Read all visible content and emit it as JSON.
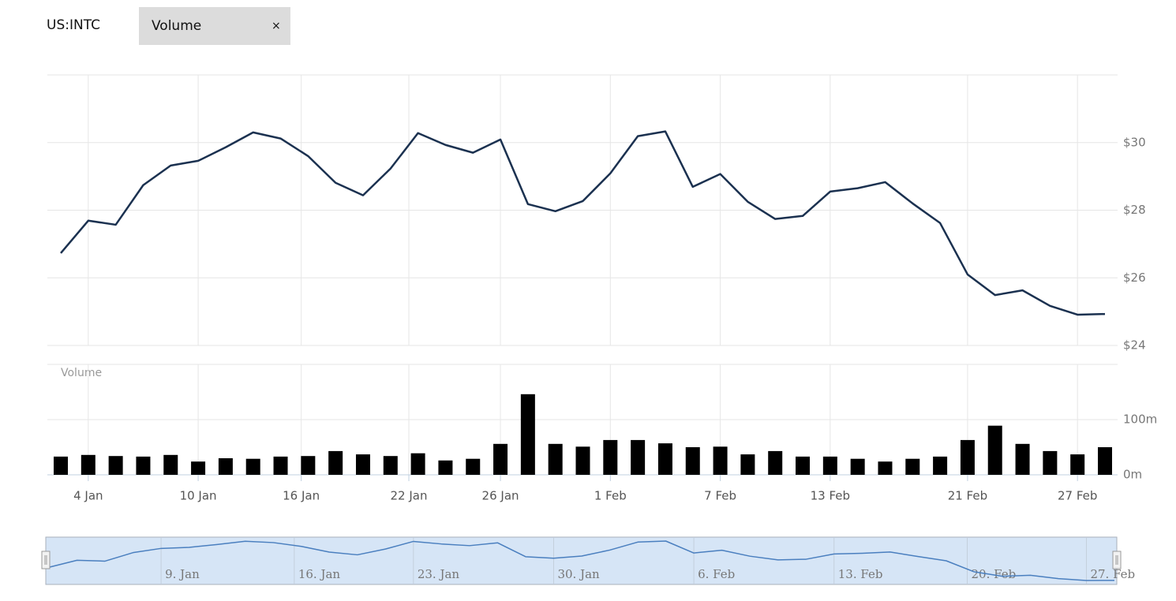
{
  "header": {
    "symbol": "US:INTC",
    "tab": "Volume",
    "close": "×"
  },
  "chart_data": [
    {
      "type": "line",
      "color": "#1b3150",
      "grid": true,
      "x": [
        3,
        4,
        5,
        6,
        9,
        10,
        11,
        12,
        13,
        17,
        18,
        19,
        20,
        23,
        24,
        25,
        26,
        27,
        30,
        31,
        32,
        33,
        34,
        37,
        38,
        39,
        40,
        41,
        44,
        45,
        46,
        47,
        48,
        52,
        53,
        54,
        55,
        58,
        59
      ],
      "values": [
        26.73,
        27.69,
        27.57,
        28.74,
        29.32,
        29.46,
        29.86,
        30.3,
        30.12,
        29.6,
        28.81,
        28.44,
        29.23,
        30.28,
        29.93,
        29.7,
        30.09,
        28.18,
        27.97,
        28.27,
        29.09,
        30.19,
        30.33,
        28.69,
        29.07,
        28.25,
        27.74,
        27.83,
        28.55,
        28.65,
        28.83,
        28.2,
        27.62,
        26.1,
        25.49,
        25.63,
        25.17,
        24.91,
        24.93
      ],
      "ylim": [
        24,
        32
      ],
      "yticks": [
        {
          "value": 24,
          "label": "$24"
        },
        {
          "value": 26,
          "label": "$26"
        },
        {
          "value": 28,
          "label": "$28"
        },
        {
          "value": 30,
          "label": "$30"
        }
      ],
      "xticks": [
        {
          "value": 4,
          "label": "4 Jan"
        },
        {
          "value": 10,
          "label": "10 Jan"
        },
        {
          "value": 16,
          "label": "16 Jan"
        },
        {
          "value": 22,
          "label": "22 Jan"
        },
        {
          "value": 26,
          "label": "26 Jan"
        },
        {
          "value": 32,
          "label": "1 Feb"
        },
        {
          "value": 38,
          "label": "7 Feb"
        },
        {
          "value": 44,
          "label": "13 Feb"
        },
        {
          "value": 52,
          "label": "21 Feb"
        },
        {
          "value": 58,
          "label": "27 Feb"
        }
      ]
    },
    {
      "type": "bar",
      "title": "Volume",
      "color": "#000000",
      "values": [
        33,
        36,
        34,
        33,
        36,
        24,
        30,
        29,
        33,
        34,
        43,
        37,
        34,
        39,
        26,
        29,
        56,
        146,
        56,
        51,
        63,
        63,
        57,
        50,
        51,
        37,
        43,
        33,
        33,
        29,
        24,
        29,
        33,
        63,
        89,
        56,
        43,
        37,
        50
      ],
      "ylim": [
        0,
        200
      ],
      "yticks": [
        {
          "value": 0,
          "label": "0m"
        },
        {
          "value": 100,
          "label": "100m"
        }
      ]
    },
    {
      "type": "navigator",
      "color": "#4a7fbf",
      "xticks": [
        {
          "value": 9,
          "label": "9. Jan"
        },
        {
          "value": 16,
          "label": "16. Jan"
        },
        {
          "value": 23,
          "label": "23. Jan"
        },
        {
          "value": 30,
          "label": "30. Jan"
        },
        {
          "value": 37,
          "label": "6. Feb"
        },
        {
          "value": 44,
          "label": "13. Feb"
        },
        {
          "value": 51,
          "label": "20. Feb"
        },
        {
          "value": 58,
          "label": "27. Feb"
        }
      ]
    }
  ]
}
